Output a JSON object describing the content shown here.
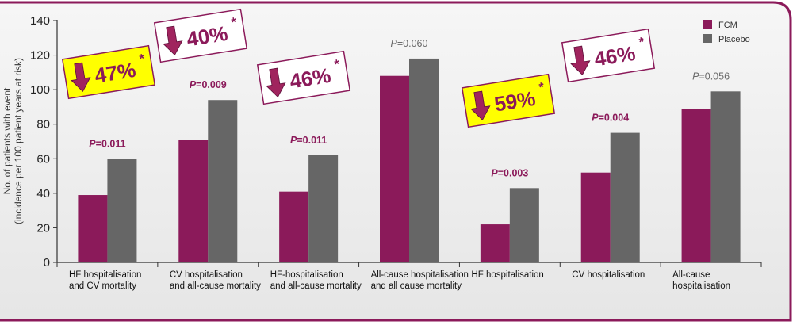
{
  "chart_data": {
    "type": "bar",
    "ylabel_line1": "No. of patients with event",
    "ylabel_line2": "(incidence per 100 patient years at risk)",
    "ylim": [
      0,
      140
    ],
    "yticks": [
      "0",
      "20",
      "40",
      "60",
      "80",
      "100",
      "120",
      "140"
    ],
    "categories": [
      [
        "HF hospitalisation",
        "and CV mortality"
      ],
      [
        "CV hospitalisation",
        "and all-cause mortality"
      ],
      [
        "HF-hospitalisation",
        "and all-cause mortality"
      ],
      [
        "All-cause hospitalisation",
        "and all cause mortality"
      ],
      [
        "HF hospitalisation"
      ],
      [
        "CV hospitalisation"
      ],
      [
        "All-cause",
        "hospitalisation"
      ]
    ],
    "series": [
      {
        "name": "FCM",
        "color": "#8b1a5a",
        "values": [
          39,
          71,
          41,
          108,
          22,
          52,
          89
        ]
      },
      {
        "name": "Placebo",
        "color": "#666666",
        "values": [
          60,
          94,
          62,
          118,
          43,
          75,
          99
        ]
      }
    ],
    "p_values": [
      {
        "prefix": "P",
        "text": "=0.011",
        "significant": true
      },
      {
        "prefix": "P",
        "text": "=0.009",
        "significant": true
      },
      {
        "prefix": "P",
        "text": "=0.011",
        "significant": true
      },
      {
        "prefix": "P",
        "text": "=0.060",
        "significant": false
      },
      {
        "prefix": "P",
        "text": "=0.003",
        "significant": true
      },
      {
        "prefix": "P",
        "text": "=0.004",
        "significant": true
      },
      {
        "prefix": "P",
        "text": "=0.056",
        "significant": false
      }
    ],
    "reductions": [
      {
        "text": "47%",
        "mark": "*",
        "highlight": true,
        "category_index": 0
      },
      {
        "text": "40%",
        "mark": "*",
        "highlight": false,
        "category_index": 1
      },
      {
        "text": "46%",
        "mark": "*",
        "highlight": false,
        "category_index": 2
      },
      {
        "text": "59%",
        "mark": "*",
        "highlight": true,
        "category_index": 4
      },
      {
        "text": "46%",
        "mark": "*",
        "highlight": false,
        "category_index": 5
      }
    ],
    "legend_position": "top-right",
    "grid": false,
    "colors": {
      "frame": "#8b1a5a",
      "panel": "#efefef",
      "highlight": "#ffff00",
      "arrow": "#a0245e"
    }
  }
}
